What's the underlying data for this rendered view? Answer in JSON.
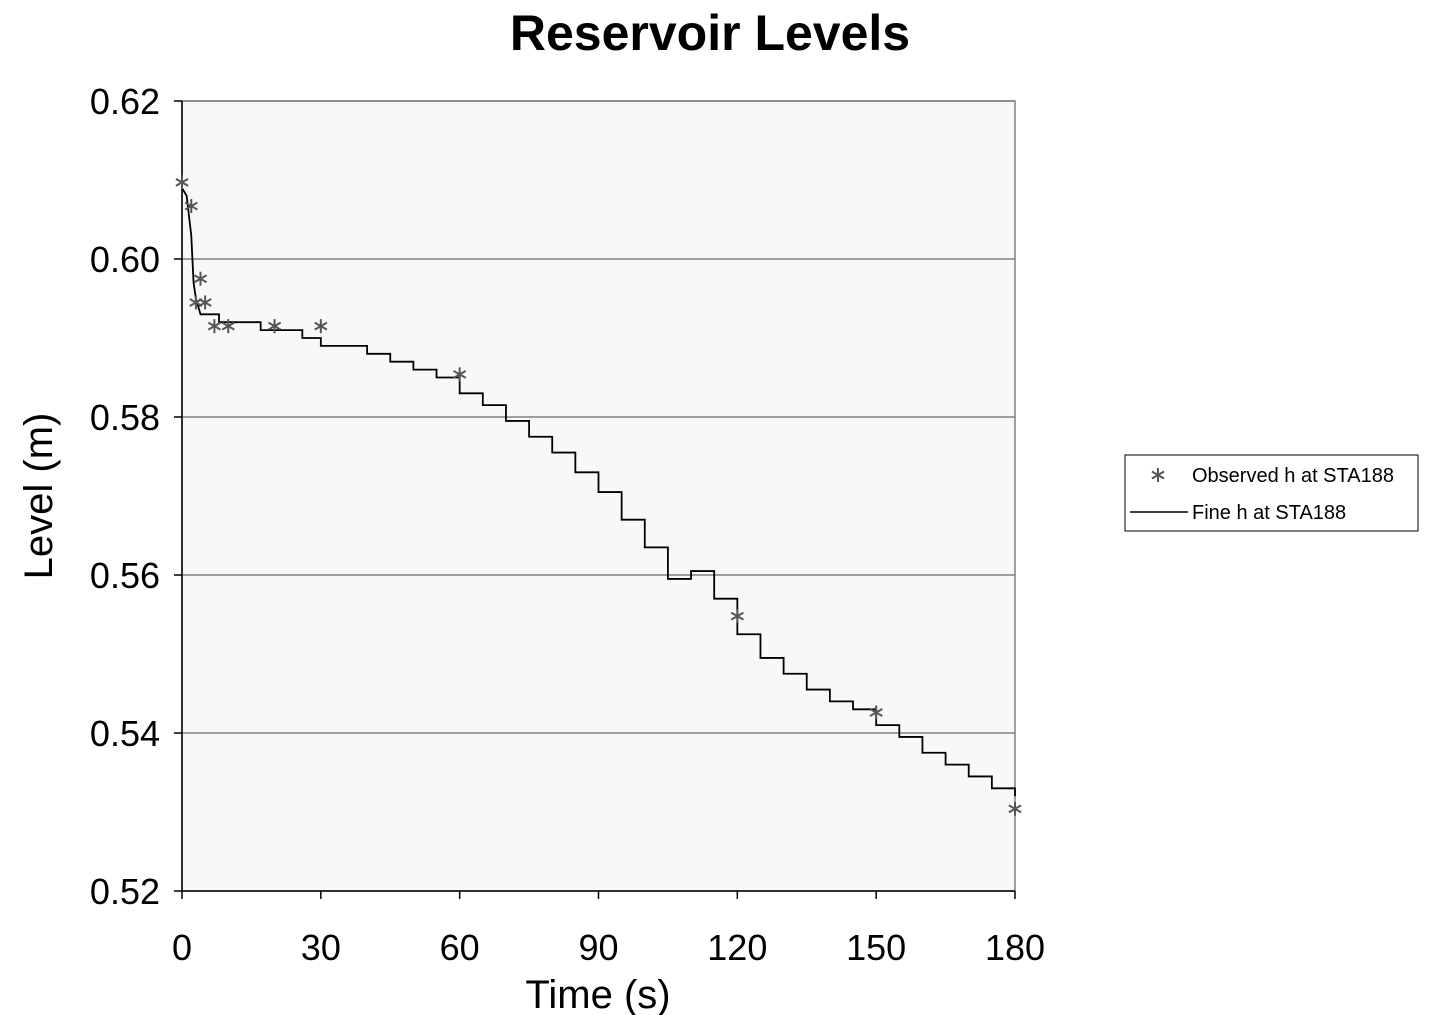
{
  "chart_data": {
    "type": "scatter",
    "title": "Reservoir Levels",
    "xlabel": "Time (s)",
    "ylabel": "Level (m)",
    "xlim": [
      0,
      180
    ],
    "ylim": [
      0.52,
      0.62
    ],
    "x_ticks": [
      0,
      30,
      60,
      90,
      120,
      150,
      180
    ],
    "x_tick_labels": [
      "0",
      "30",
      "60",
      "90",
      "120",
      "150",
      "180"
    ],
    "y_ticks": [
      0.52,
      0.54,
      0.56,
      0.58,
      0.6,
      0.62
    ],
    "y_tick_labels": [
      "0.52",
      "0.54",
      "0.56",
      "0.58",
      "0.60",
      "0.62"
    ],
    "grid": "horizontal",
    "legend_position": "right",
    "plot_background": "#f8f8f8",
    "series": [
      {
        "name": "Observed h at STA188",
        "kind": "scatter",
        "marker": "asterisk",
        "color": "#555555",
        "x": [
          0,
          2,
          3,
          4,
          5,
          7,
          10,
          20,
          30,
          60,
          120,
          150,
          180
        ],
        "y": [
          0.6097,
          0.6067,
          0.5945,
          0.5975,
          0.5945,
          0.5915,
          0.5915,
          0.5915,
          0.5915,
          0.5854,
          0.5548,
          0.5426,
          0.5304
        ]
      },
      {
        "name": "Fine h at STA188",
        "kind": "step-line",
        "color": "#000000",
        "x": [
          0,
          1,
          2,
          2.5,
          3,
          3.5,
          4,
          5,
          6,
          8,
          12,
          17,
          22,
          26,
          30,
          35,
          40,
          45,
          50,
          55,
          60,
          65,
          70,
          75,
          80,
          85,
          90,
          95,
          100,
          105,
          110,
          115,
          120,
          125,
          130,
          135,
          140,
          145,
          150,
          155,
          160,
          165,
          170,
          175,
          180
        ],
        "y": [
          0.609,
          0.608,
          0.603,
          0.597,
          0.595,
          0.594,
          0.593,
          0.593,
          0.593,
          0.592,
          0.592,
          0.591,
          0.591,
          0.59,
          0.589,
          0.589,
          0.588,
          0.587,
          0.586,
          0.585,
          0.583,
          0.5815,
          0.5795,
          0.5775,
          0.5755,
          0.573,
          0.5705,
          0.567,
          0.5635,
          0.5595,
          0.5605,
          0.557,
          0.5525,
          0.5495,
          0.5475,
          0.5455,
          0.544,
          0.543,
          0.541,
          0.5395,
          0.5375,
          0.536,
          0.5345,
          0.533,
          0.532
        ]
      }
    ]
  }
}
